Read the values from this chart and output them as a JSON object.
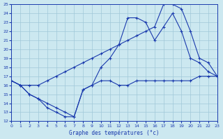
{
  "xlabel": "Graphe des températures (°c)",
  "bg_color": "#cce8f0",
  "grid_color": "#a0c8d8",
  "line_color": "#1a3aad",
  "ylim": [
    12,
    25
  ],
  "xlim": [
    0,
    23
  ],
  "yticks": [
    12,
    13,
    14,
    15,
    16,
    17,
    18,
    19,
    20,
    21,
    22,
    23,
    24,
    25
  ],
  "xticks": [
    0,
    1,
    2,
    3,
    4,
    5,
    6,
    7,
    8,
    9,
    10,
    11,
    12,
    13,
    14,
    15,
    16,
    17,
    18,
    19,
    20,
    21,
    22,
    23
  ],
  "series1_x": [
    0,
    1,
    2,
    3,
    4,
    5,
    6,
    7,
    8,
    9,
    10,
    11,
    12,
    13,
    14,
    15,
    16,
    17,
    18,
    19,
    20,
    21,
    22,
    23
  ],
  "series1_y": [
    16.5,
    16.0,
    15.0,
    14.5,
    13.5,
    13.0,
    12.5,
    12.5,
    15.5,
    16.0,
    18.0,
    19.0,
    20.5,
    23.5,
    23.5,
    23.0,
    21.0,
    22.5,
    24.0,
    22.0,
    19.0,
    18.5,
    17.5,
    17.0
  ],
  "series2_x": [
    0,
    1,
    2,
    3,
    4,
    5,
    6,
    7,
    8,
    9,
    10,
    11,
    12,
    13,
    14,
    15,
    16,
    17,
    18,
    19,
    20,
    21,
    22,
    23
  ],
  "series2_y": [
    16.5,
    16.0,
    16.0,
    16.0,
    16.5,
    17.0,
    17.5,
    18.0,
    18.5,
    19.0,
    19.5,
    20.0,
    20.5,
    21.0,
    21.5,
    22.0,
    22.5,
    25.0,
    25.0,
    24.5,
    22.0,
    19.0,
    18.5,
    17.0
  ],
  "series3_x": [
    0,
    1,
    2,
    3,
    4,
    5,
    6,
    7,
    8,
    9,
    10,
    11,
    12,
    13,
    14,
    15,
    16,
    17,
    18,
    19,
    20,
    21,
    22,
    23
  ],
  "series3_y": [
    16.5,
    16.0,
    15.0,
    14.5,
    14.0,
    13.5,
    13.0,
    12.5,
    15.5,
    16.0,
    16.5,
    16.5,
    16.0,
    16.0,
    16.5,
    16.5,
    16.5,
    16.5,
    16.5,
    16.5,
    16.5,
    17.0,
    17.0,
    17.0
  ]
}
